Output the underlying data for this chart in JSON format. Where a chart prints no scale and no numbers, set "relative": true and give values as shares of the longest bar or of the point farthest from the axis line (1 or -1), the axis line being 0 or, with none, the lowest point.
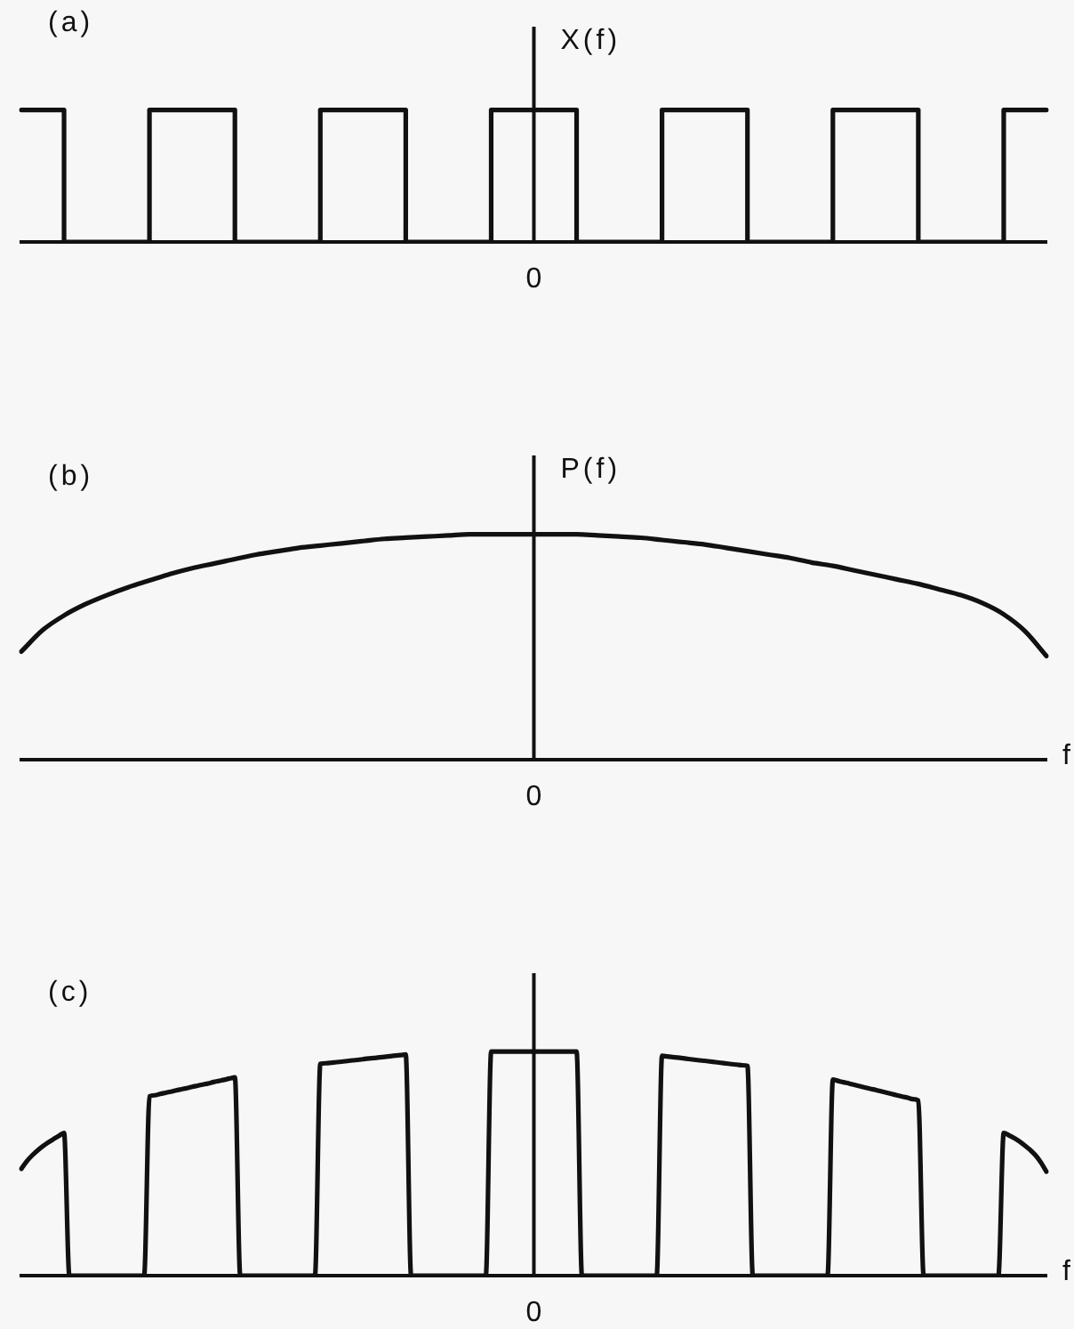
{
  "chart_data": [
    {
      "type": "step",
      "title": "(a)",
      "ylabel": "X(f)",
      "annotations": [
        "0"
      ],
      "relative": true,
      "color": "#111111",
      "categories": [
        null,
        null,
        null,
        null,
        null,
        null,
        null,
        null,
        null,
        null,
        null,
        null,
        null,
        null,
        null,
        null,
        null,
        null,
        null,
        null,
        null,
        null,
        null,
        null,
        null
      ],
      "values": [
        1,
        0,
        0,
        1,
        1,
        0,
        0,
        1,
        1,
        0,
        0,
        1,
        1,
        0,
        0,
        1,
        1,
        0,
        0,
        1,
        1,
        0,
        0,
        1,
        1
      ]
    },
    {
      "type": "line",
      "title": "(b)",
      "ylabel": "P(f)",
      "xlabel": "f",
      "annotations": [
        "0"
      ],
      "relative": true,
      "color": "#111111",
      "categories": [
        null,
        null,
        null,
        null,
        null,
        null,
        null,
        null,
        null,
        null,
        null,
        null,
        null,
        null,
        null,
        null,
        null,
        null,
        null,
        null,
        null,
        null,
        null,
        null,
        null,
        null,
        null,
        null,
        null,
        null,
        null,
        null,
        null,
        null,
        null,
        null,
        null,
        null,
        null,
        null,
        null,
        null,
        null,
        null,
        null,
        null,
        null,
        null,
        null
      ],
      "values": [
        0.48,
        0.575,
        0.64,
        0.69,
        0.73,
        0.765,
        0.795,
        0.825,
        0.85,
        0.87,
        0.89,
        0.91,
        0.925,
        0.94,
        0.95,
        0.96,
        0.97,
        0.98,
        0.985,
        0.99,
        0.995,
        1,
        1,
        1,
        1,
        1,
        1,
        0.995,
        0.99,
        0.985,
        0.975,
        0.965,
        0.955,
        0.94,
        0.925,
        0.91,
        0.895,
        0.875,
        0.86,
        0.84,
        0.82,
        0.8,
        0.78,
        0.755,
        0.73,
        0.695,
        0.645,
        0.57,
        0.46
      ]
    },
    {
      "type": "line",
      "title": "(c)",
      "xlabel": "f",
      "annotations": [
        "0"
      ],
      "relative": true,
      "color": "#111111",
      "categories": [
        null,
        null,
        null,
        null,
        null,
        null,
        null,
        null,
        null,
        null,
        null,
        null,
        null,
        null,
        null,
        null,
        null,
        null,
        null,
        null,
        null,
        null,
        null,
        null,
        null,
        null,
        null,
        null,
        null,
        null,
        null,
        null,
        null,
        null,
        null,
        null,
        null,
        null,
        null,
        null,
        null,
        null,
        null,
        null,
        null,
        null,
        null,
        null,
        null,
        null,
        null,
        null,
        null,
        null,
        null,
        null,
        null,
        null,
        null,
        null,
        null,
        null,
        null,
        null,
        null,
        null,
        null,
        null,
        null,
        null,
        null,
        null,
        null,
        null,
        null,
        null,
        null,
        null,
        null,
        null,
        null,
        null,
        null,
        null,
        null,
        null,
        null,
        null,
        null,
        null,
        null,
        null,
        null,
        null,
        null,
        null,
        null,
        null,
        null,
        null,
        null,
        null,
        null,
        null,
        null,
        null,
        null,
        null,
        null,
        null,
        null,
        null,
        null,
        null,
        null,
        null,
        null,
        null,
        null,
        null,
        null,
        null,
        null,
        null,
        null,
        null,
        null,
        null,
        null,
        null,
        null,
        null,
        null,
        null,
        null,
        null,
        null,
        null,
        null,
        null,
        null,
        null,
        null,
        null,
        null,
        null,
        null,
        null,
        null,
        null,
        null,
        null,
        null,
        null,
        null,
        null,
        null,
        null,
        null,
        null,
        null,
        null,
        null,
        null,
        null,
        null,
        null,
        null,
        null,
        null,
        null,
        null,
        null,
        null,
        null,
        null,
        null,
        null,
        null,
        null,
        null,
        null,
        null,
        null,
        null,
        null,
        null,
        null,
        null,
        null,
        null,
        null,
        null
      ],
      "values": [
        0.477,
        0.51,
        0.536,
        0.558,
        0.577,
        0.594,
        0.609,
        0.623,
        0.637,
        0,
        0,
        0,
        0,
        0,
        0,
        0,
        0,
        0,
        0,
        0,
        0,
        0,
        0,
        0,
        0.8,
        0.805,
        0.811,
        0.816,
        0.821,
        0.827,
        0.832,
        0.837,
        0.843,
        0.848,
        0.853,
        0.858,
        0.864,
        0.869,
        0.874,
        0.88,
        0.885,
        0,
        0,
        0,
        0,
        0,
        0,
        0,
        0,
        0,
        0,
        0,
        0,
        0,
        0,
        0,
        0.945,
        0.948,
        0.95,
        0.953,
        0.955,
        0.958,
        0.961,
        0.963,
        0.966,
        0.969,
        0.971,
        0.974,
        0.976,
        0.979,
        0.982,
        0.984,
        0.987,
        0,
        0,
        0,
        0,
        0,
        0,
        0,
        0,
        0,
        0,
        0,
        0,
        0,
        0,
        0,
        1,
        1,
        1,
        1,
        1,
        1,
        1,
        1,
        1,
        1,
        1,
        1,
        1,
        1,
        1,
        1,
        1,
        0,
        0,
        0,
        0,
        0,
        0,
        0,
        0,
        0,
        0,
        0,
        0,
        0,
        0,
        0,
        0.981,
        0.978,
        0.975,
        0.973,
        0.97,
        0.967,
        0.964,
        0.961,
        0.959,
        0.956,
        0.953,
        0.95,
        0.947,
        0.944,
        0.942,
        0.939,
        0.936,
        0,
        0,
        0,
        0,
        0,
        0,
        0,
        0,
        0,
        0,
        0,
        0,
        0,
        0,
        0,
        0.875,
        0.869,
        0.863,
        0.858,
        0.852,
        0.846,
        0.84,
        0.834,
        0.829,
        0.823,
        0.817,
        0.811,
        0.805,
        0.799,
        0.794,
        0.788,
        0.782,
        0,
        0,
        0,
        0,
        0,
        0,
        0,
        0,
        0,
        0,
        0,
        0,
        0,
        0,
        0,
        0.637,
        0.626,
        0.613,
        0.598,
        0.58,
        0.56,
        0.536,
        0.504,
        0.464
      ]
    }
  ]
}
